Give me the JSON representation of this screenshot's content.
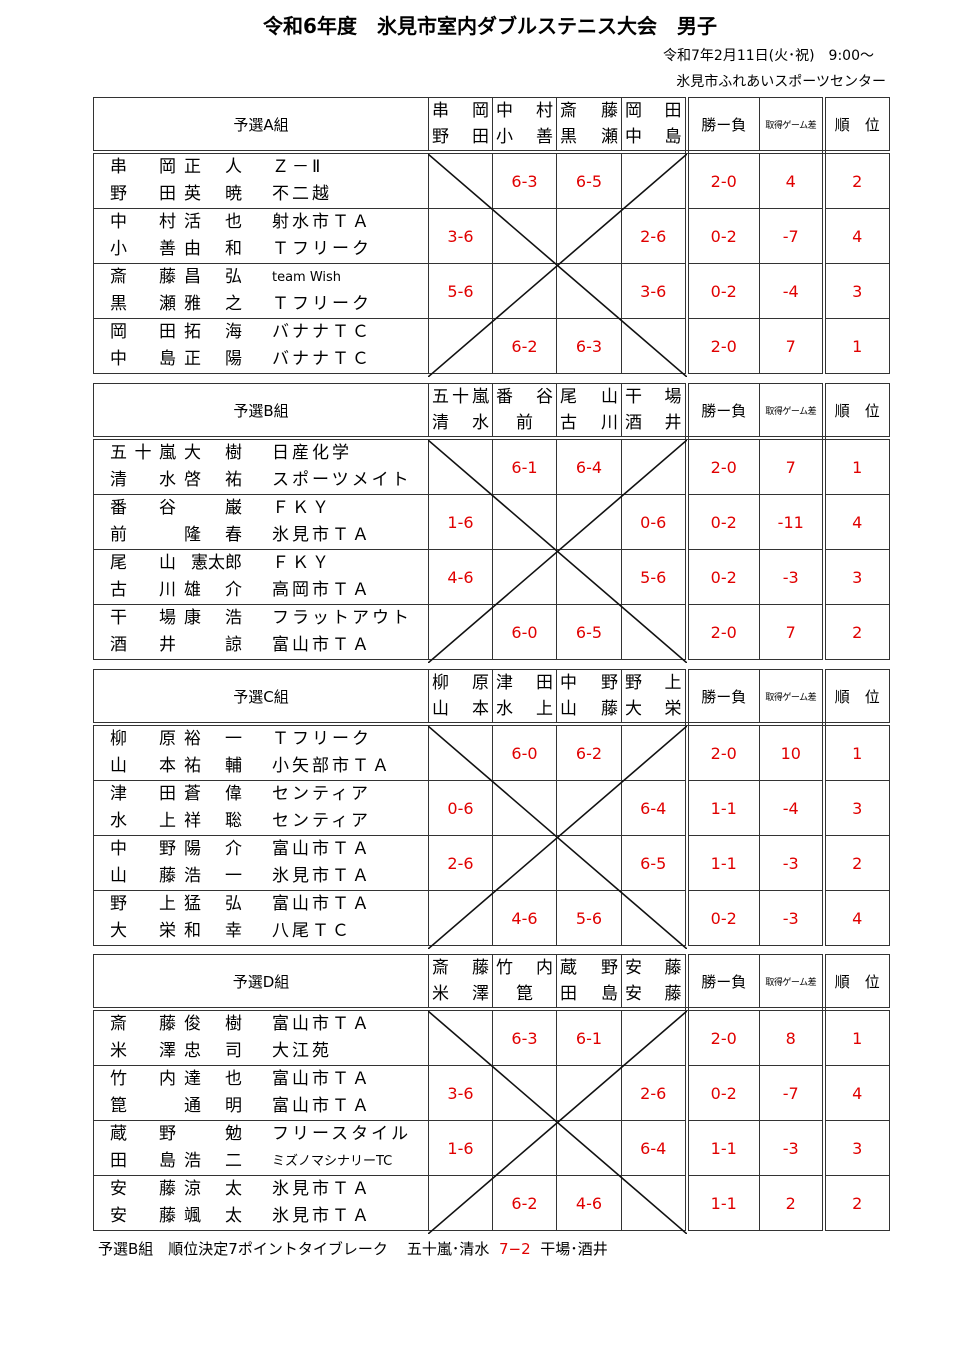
{
  "title": "令和6年度　氷見市室内ダブルステニス大会　男子",
  "date": "令和7年2月11日(火･祝)　9:00～",
  "venue": "氷見市ふれあいスポーツセンター",
  "headers": {
    "record": "勝ー負",
    "game_diff": "取得ゲーム差",
    "rank": "順　位"
  },
  "colors": {
    "score": "#e00000",
    "text": "#000000"
  },
  "groups": [
    {
      "label": "予選A組",
      "opponents": [
        [
          "串岡",
          "野田"
        ],
        [
          "中村",
          "小善"
        ],
        [
          "斎藤",
          "黒瀬"
        ],
        [
          "岡田",
          "中島"
        ]
      ],
      "rows": [
        {
          "players": [
            {
              "family": "串岡",
              "given": "正人",
              "team": "Ｚ－Ⅱ"
            },
            {
              "family": "野田",
              "given": "英暁",
              "team": "不二越"
            }
          ],
          "scores": [
            "",
            "6-3",
            "6-5",
            ""
          ],
          "record": "2-0",
          "game_diff": "4",
          "rank": "2"
        },
        {
          "players": [
            {
              "family": "中村",
              "given": "活也",
              "team": "射水市ＴＡ"
            },
            {
              "family": "小善",
              "given": "由和",
              "team": "Ｔフリーク"
            }
          ],
          "scores": [
            "3-6",
            "",
            "",
            "2-6"
          ],
          "record": "0-2",
          "game_diff": "-7",
          "rank": "4"
        },
        {
          "players": [
            {
              "family": "斎藤",
              "given": "昌弘",
              "team": "team Wish"
            },
            {
              "family": "黒瀬",
              "given": "雅之",
              "team": "Ｔフリーク"
            }
          ],
          "scores": [
            "5-6",
            "",
            "",
            "3-6"
          ],
          "record": "0-2",
          "game_diff": "-4",
          "rank": "3"
        },
        {
          "players": [
            {
              "family": "岡田",
              "given": "拓海",
              "team": "バナナＴＣ"
            },
            {
              "family": "中島",
              "given": "正陽",
              "team": "バナナＴＣ"
            }
          ],
          "scores": [
            "",
            "6-2",
            "6-3",
            ""
          ],
          "record": "2-0",
          "game_diff": "7",
          "rank": "1"
        }
      ]
    },
    {
      "label": "予選B組",
      "opponents": [
        [
          "五十嵐",
          "清水"
        ],
        [
          "番谷",
          "前"
        ],
        [
          "尾山",
          "古川"
        ],
        [
          "干場",
          "酒井"
        ]
      ],
      "rows": [
        {
          "players": [
            {
              "family": "五十嵐",
              "given": "大樹",
              "team": "日産化学"
            },
            {
              "family": "清水",
              "given": "啓祐",
              "team": "スポーツメイト"
            }
          ],
          "scores": [
            "",
            "6-1",
            "6-4",
            ""
          ],
          "record": "2-0",
          "game_diff": "7",
          "rank": "1"
        },
        {
          "players": [
            {
              "family": "番谷",
              "given": "巌",
              "team": "ＦＫＹ"
            },
            {
              "family": "前",
              "given": "隆春",
              "team": "氷見市ＴＡ"
            }
          ],
          "scores": [
            "1-6",
            "",
            "",
            "0-6"
          ],
          "record": "0-2",
          "game_diff": "-11",
          "rank": "4"
        },
        {
          "players": [
            {
              "family": "尾山",
              "given": "憲太郎",
              "team": "ＦＫＹ"
            },
            {
              "family": "古川",
              "given": "雄介",
              "team": "高岡市ＴＡ"
            }
          ],
          "scores": [
            "4-6",
            "",
            "",
            "5-6"
          ],
          "record": "0-2",
          "game_diff": "-3",
          "rank": "3"
        },
        {
          "players": [
            {
              "family": "干場",
              "given": "康浩",
              "team": "フラットアウト"
            },
            {
              "family": "酒井",
              "given": "諒",
              "team": "富山市ＴＡ"
            }
          ],
          "scores": [
            "",
            "6-0",
            "6-5",
            ""
          ],
          "record": "2-0",
          "game_diff": "7",
          "rank": "2"
        }
      ]
    },
    {
      "label": "予選C組",
      "opponents": [
        [
          "柳原",
          "山本"
        ],
        [
          "津田",
          "水上"
        ],
        [
          "中野",
          "山藤"
        ],
        [
          "野上",
          "大栄"
        ]
      ],
      "rows": [
        {
          "players": [
            {
              "family": "柳原",
              "given": "裕一",
              "team": "Ｔフリーク"
            },
            {
              "family": "山本",
              "given": "祐輔",
              "team": "小矢部市ＴＡ"
            }
          ],
          "scores": [
            "",
            "6-0",
            "6-2",
            ""
          ],
          "record": "2-0",
          "game_diff": "10",
          "rank": "1"
        },
        {
          "players": [
            {
              "family": "津田",
              "given": "蒼偉",
              "team": "センティア"
            },
            {
              "family": "水上",
              "given": "祥聡",
              "team": "センティア"
            }
          ],
          "scores": [
            "0-6",
            "",
            "",
            "6-4"
          ],
          "record": "1-1",
          "game_diff": "-4",
          "rank": "3"
        },
        {
          "players": [
            {
              "family": "中野",
              "given": "陽介",
              "team": "富山市ＴＡ"
            },
            {
              "family": "山藤",
              "given": "浩一",
              "team": "氷見市ＴＡ"
            }
          ],
          "scores": [
            "2-6",
            "",
            "",
            "6-5"
          ],
          "record": "1-1",
          "game_diff": "-3",
          "rank": "2"
        },
        {
          "players": [
            {
              "family": "野上",
              "given": "猛弘",
              "team": "富山市ＴＡ"
            },
            {
              "family": "大栄",
              "given": "和幸",
              "team": "八尾ＴＣ"
            }
          ],
          "scores": [
            "",
            "4-6",
            "5-6",
            ""
          ],
          "record": "0-2",
          "game_diff": "-3",
          "rank": "4"
        }
      ]
    },
    {
      "label": "予選D組",
      "opponents": [
        [
          "斎藤",
          "米澤"
        ],
        [
          "竹内",
          "箟"
        ],
        [
          "蔵野",
          "田島"
        ],
        [
          "安藤",
          "安藤"
        ]
      ],
      "rows": [
        {
          "players": [
            {
              "family": "斎藤",
              "given": "俊樹",
              "team": "富山市ＴＡ"
            },
            {
              "family": "米澤",
              "given": "忠司",
              "team": "大江苑"
            }
          ],
          "scores": [
            "",
            "6-3",
            "6-1",
            ""
          ],
          "record": "2-0",
          "game_diff": "8",
          "rank": "1"
        },
        {
          "players": [
            {
              "family": "竹内",
              "given": "達也",
              "team": "富山市ＴＡ"
            },
            {
              "family": "箟",
              "given": "通明",
              "team": "富山市ＴＡ"
            }
          ],
          "scores": [
            "3-6",
            "",
            "",
            "2-6"
          ],
          "record": "0-2",
          "game_diff": "-7",
          "rank": "4"
        },
        {
          "players": [
            {
              "family": "蔵野",
              "given": "勉",
              "team": "フリースタイル"
            },
            {
              "family": "田島",
              "given": "浩二",
              "team": "ミズノマシナリーTC"
            }
          ],
          "scores": [
            "1-6",
            "",
            "",
            "6-4"
          ],
          "record": "1-1",
          "game_diff": "-3",
          "rank": "3"
        },
        {
          "players": [
            {
              "family": "安藤",
              "given": "涼太",
              "team": "氷見市ＴＡ"
            },
            {
              "family": "安藤",
              "given": "颯太",
              "team": "氷見市ＴＡ"
            }
          ],
          "scores": [
            "",
            "6-2",
            "4-6",
            ""
          ],
          "record": "1-1",
          "game_diff": "2",
          "rank": "2"
        }
      ]
    }
  ],
  "footnote": {
    "text": "予選B組　順位決定7ポイントタイブレーク",
    "team1": "五十嵐･清水",
    "score": "7−2",
    "team2": "干場･酒井"
  }
}
